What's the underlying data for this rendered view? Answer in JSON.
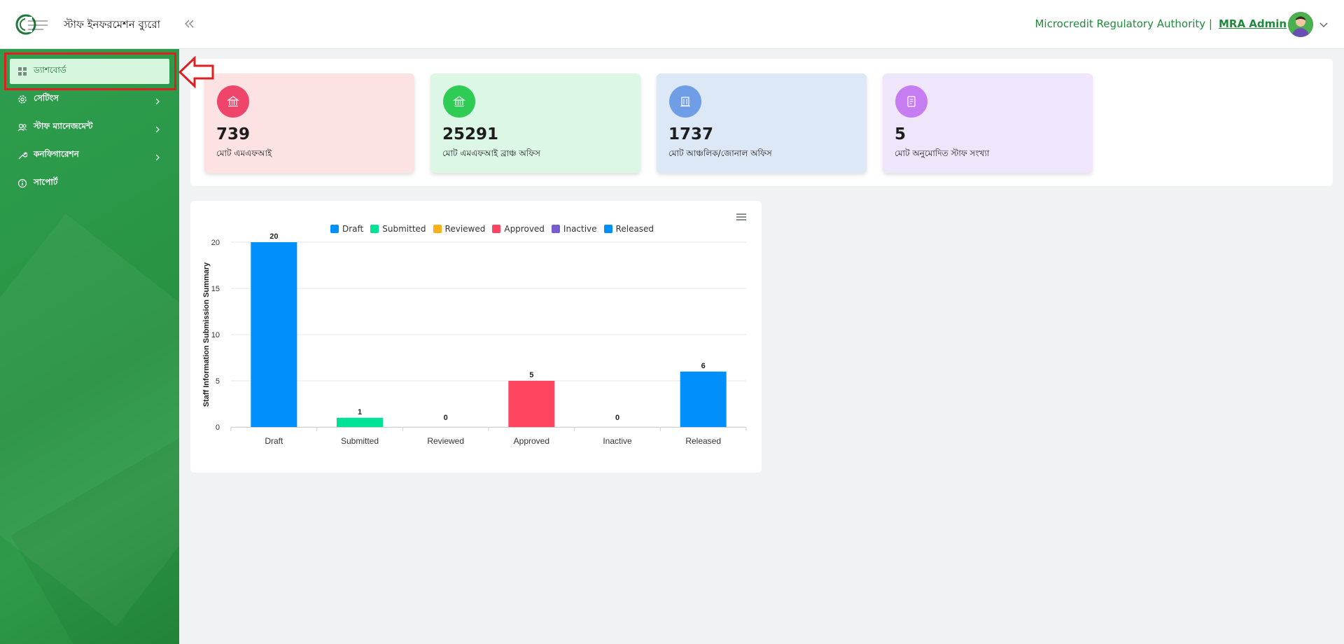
{
  "header": {
    "app_title": "স্টাফ ইনফরমেশন ব্যুরো",
    "org_name": "Microcredit Regulatory Authority |",
    "user_name": "MRA Admin"
  },
  "sidebar": {
    "items": [
      {
        "label": "ড্যাশবোর্ড",
        "icon": "dashboard-icon"
      },
      {
        "label": "সেটিংস",
        "icon": "gear-icon"
      },
      {
        "label": "স্টাফ ম্যানেজমেন্ট",
        "icon": "users-icon"
      },
      {
        "label": "কনফিগারেশন",
        "icon": "wrench-icon"
      },
      {
        "label": "সাপোর্ট",
        "icon": "info-icon"
      }
    ]
  },
  "cards": [
    {
      "value": "739",
      "label": "মোট এমএফআই",
      "color": "#fde2e4",
      "icon_color": "#f0456b",
      "icon": "bank-icon"
    },
    {
      "value": "25291",
      "label": "মোট এমএফআই ব্রাঞ্চ অফিস",
      "color": "#dcf7e6",
      "icon_color": "#2fcc55",
      "icon": "bank-icon"
    },
    {
      "value": "1737",
      "label": "মোট আঞ্চলিক/জোনাল অফিস",
      "color": "#dde8f7",
      "icon_color": "#6f9ee6",
      "icon": "building-icon"
    },
    {
      "value": "5",
      "label": "মোট অনুমোদিত স্টাফ সংখ্যা",
      "color": "#f0e6fb",
      "icon_color": "#c67df2",
      "icon": "document-icon"
    }
  ],
  "chart_data": {
    "type": "bar",
    "categories": [
      "Draft",
      "Submitted",
      "Reviewed",
      "Approved",
      "Inactive",
      "Released"
    ],
    "values": [
      20,
      1,
      0,
      5,
      0,
      6
    ],
    "colors": [
      "#008ffb",
      "#00e396",
      "#feb019",
      "#ff4560",
      "#775dd0",
      "#008ffb"
    ],
    "legend": [
      "Draft",
      "Submitted",
      "Reviewed",
      "Approved",
      "Inactive",
      "Released"
    ],
    "ylabel": "Staff Information Submission Summary",
    "yticks": [
      "0",
      "5",
      "10",
      "15",
      "20"
    ],
    "ylim": [
      0,
      20
    ],
    "grid": true,
    "legend_position": "top"
  }
}
